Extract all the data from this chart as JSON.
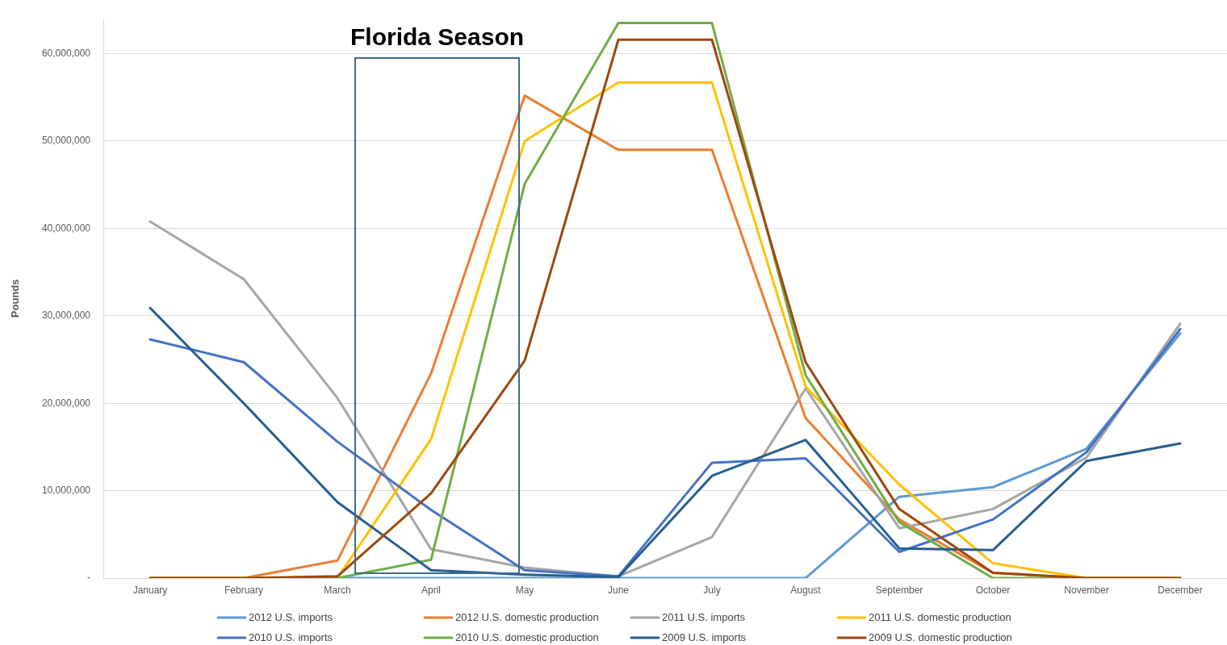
{
  "chart_data": {
    "type": "line",
    "ylabel": "Pounds",
    "annotations": [
      "Florida Season"
    ],
    "categories": [
      "January",
      "February",
      "March",
      "April",
      "May",
      "June",
      "July",
      "August",
      "September",
      "October",
      "November",
      "December"
    ],
    "series": [
      {
        "name": "2012 U.S. imports",
        "color": "#5b9bd5",
        "values": [
          0,
          0,
          0,
          0,
          0,
          0,
          0,
          0,
          9300000,
          10400000,
          14800000,
          28000000
        ]
      },
      {
        "name": "2012 U.S. domestic production",
        "color": "#ed7d31",
        "values": [
          0,
          0,
          2000000,
          23400000,
          55200000,
          49000000,
          49000000,
          18300000,
          6700000,
          600000,
          0,
          0
        ]
      },
      {
        "name": "2011 U.S. imports",
        "color": "#a5a5a5",
        "values": [
          40800000,
          34200000,
          20600000,
          3300000,
          1200000,
          200000,
          4700000,
          21700000,
          5700000,
          7900000,
          13800000,
          29100000
        ]
      },
      {
        "name": "2011 U.S. domestic production",
        "color": "#ffc000",
        "values": [
          0,
          0,
          0,
          15900000,
          50000000,
          56700000,
          56700000,
          21900000,
          10700000,
          1700000,
          0,
          0
        ]
      },
      {
        "name": "2010 U.S. imports",
        "color": "#4472c4",
        "values": [
          27300000,
          24700000,
          15600000,
          7800000,
          900000,
          200000,
          13200000,
          13700000,
          3000000,
          6700000,
          14400000,
          28500000
        ]
      },
      {
        "name": "2010 U.S. domestic production",
        "color": "#70ad47",
        "values": [
          0,
          0,
          0,
          2100000,
          45100000,
          63500000,
          63500000,
          23200000,
          6400000,
          0,
          0,
          0
        ]
      },
      {
        "name": "2009 U.S. imports",
        "color": "#255e91",
        "values": [
          30900000,
          20000000,
          8700000,
          900000,
          400000,
          100000,
          11700000,
          15800000,
          3400000,
          3200000,
          13400000,
          15400000
        ]
      },
      {
        "name": "2009 U.S. domestic production",
        "color": "#9e480e",
        "values": [
          0,
          0,
          200000,
          9700000,
          24900000,
          61600000,
          61600000,
          24700000,
          7900000,
          600000,
          0,
          0
        ]
      }
    ],
    "ylim": [
      0,
      64000000
    ],
    "yticks": [
      {
        "value": 0,
        "label": "-"
      },
      {
        "value": 10000000,
        "label": "10,000,000"
      },
      {
        "value": 20000000,
        "label": "20,000,000"
      },
      {
        "value": 30000000,
        "label": "30,000,000"
      },
      {
        "value": 40000000,
        "label": "40,000,000"
      },
      {
        "value": 50000000,
        "label": "50,000,000"
      },
      {
        "value": 60000000,
        "label": "60,000,000"
      }
    ],
    "grid": "y",
    "legend": "bottom"
  }
}
